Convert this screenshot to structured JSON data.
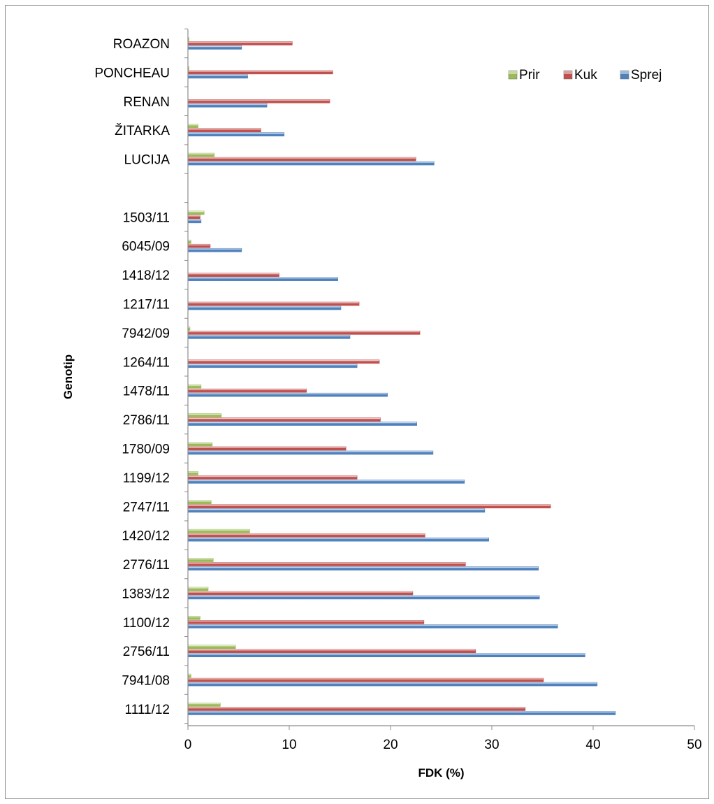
{
  "chart_data": {
    "type": "bar",
    "orientation": "horizontal",
    "xlabel": "FDK (%)",
    "ylabel": "Genotip",
    "xlim": [
      0,
      50
    ],
    "xticks": [
      0,
      10,
      20,
      30,
      40,
      50
    ],
    "grid": false,
    "legend_position": "top-right",
    "categories": [
      "ROAZON",
      "PONCHEAU",
      "RENAN",
      "ŽITARKA",
      "LUCIJA",
      "",
      "1503/11",
      "6045/09",
      "1418/12",
      "1217/11",
      "7942/09",
      "1264/11",
      "1478/11",
      "2786/11",
      "1780/09",
      "1199/12",
      "2747/11",
      "1420/12",
      "2776/11",
      "1383/12",
      "1100/12",
      "2756/11",
      "7941/08",
      "1111/12"
    ],
    "series": [
      {
        "name": "Prir",
        "color": "#9bbb59",
        "values": [
          0.1,
          0.1,
          0.0,
          1.0,
          2.6,
          null,
          1.6,
          0.3,
          0.0,
          0.0,
          0.2,
          0.0,
          1.3,
          3.3,
          2.4,
          1.0,
          2.3,
          6.1,
          2.5,
          2.0,
          1.2,
          4.7,
          0.3,
          3.2
        ]
      },
      {
        "name": "Kuk",
        "color": "#c0504d",
        "values": [
          10.3,
          14.3,
          14.0,
          7.2,
          22.5,
          null,
          1.2,
          2.2,
          9.0,
          16.9,
          22.9,
          18.9,
          11.7,
          19.0,
          15.6,
          16.7,
          35.8,
          23.4,
          27.4,
          22.2,
          23.3,
          28.4,
          35.1,
          33.3
        ]
      },
      {
        "name": "Sprej",
        "color": "#4f81bd",
        "values": [
          5.3,
          5.9,
          7.8,
          9.5,
          24.3,
          null,
          1.3,
          5.3,
          14.8,
          15.1,
          16.0,
          16.7,
          19.7,
          22.6,
          24.2,
          27.3,
          29.3,
          29.7,
          34.6,
          34.7,
          36.5,
          39.2,
          40.4,
          42.2
        ]
      }
    ]
  },
  "legend": {
    "items": [
      {
        "label": "Prir",
        "color": "#9bbb59"
      },
      {
        "label": "Kuk",
        "color": "#c0504d"
      },
      {
        "label": "Sprej",
        "color": "#4f81bd"
      }
    ]
  }
}
